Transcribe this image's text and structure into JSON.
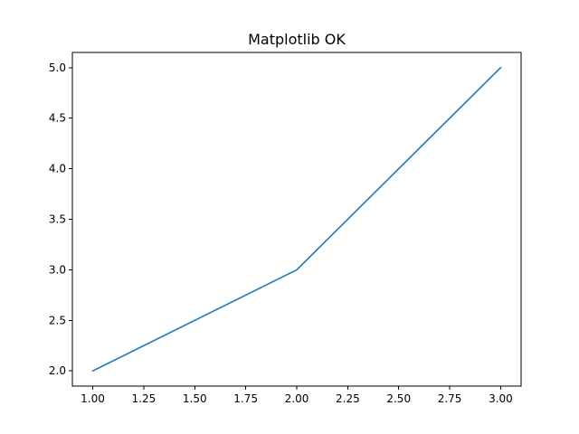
{
  "chart_data": {
    "type": "line",
    "title": "Matplotlib OK",
    "xlabel": "",
    "ylabel": "",
    "x": [
      1.0,
      2.0,
      3.0
    ],
    "series": [
      {
        "values": [
          2.0,
          3.0,
          5.0
        ],
        "color": "#1f77b4"
      }
    ],
    "xlim": [
      0.9,
      3.1
    ],
    "ylim": [
      1.85,
      5.15
    ],
    "x_ticks": [
      1.0,
      1.25,
      1.5,
      1.75,
      2.0,
      2.25,
      2.5,
      2.75,
      3.0
    ],
    "x_tick_labels": [
      "1.00",
      "1.25",
      "1.50",
      "1.75",
      "2.00",
      "2.25",
      "2.50",
      "2.75",
      "3.00"
    ],
    "y_ticks": [
      2.0,
      2.5,
      3.0,
      3.5,
      4.0,
      4.5,
      5.0
    ],
    "y_tick_labels": [
      "2.0",
      "2.5",
      "3.0",
      "3.5",
      "4.0",
      "4.5",
      "5.0"
    ],
    "grid": false,
    "legend": "none"
  }
}
